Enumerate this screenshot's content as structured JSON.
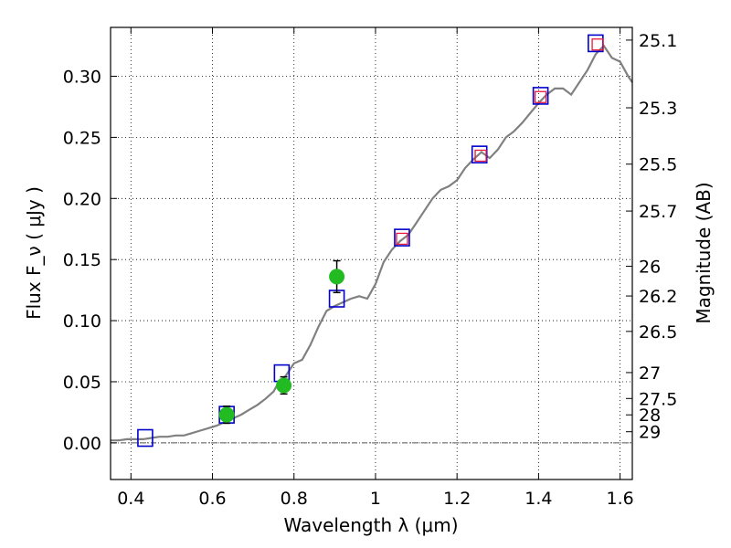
{
  "chart_data": {
    "type": "scatter",
    "xlabel": "Wavelength  λ (μm)",
    "ylabel": "Flux  F_ν  ( μJy )",
    "ylabel_right": "Magnitude (AB)",
    "xlim": [
      0.35,
      1.63
    ],
    "ylim": [
      -0.03,
      0.34
    ],
    "grid": true,
    "x_ticks": [
      {
        "value": 0.4,
        "label": "0.4"
      },
      {
        "value": 0.6,
        "label": "0.6"
      },
      {
        "value": 0.8,
        "label": "0.8"
      },
      {
        "value": 1.0,
        "label": "1"
      },
      {
        "value": 1.2,
        "label": "1.2"
      },
      {
        "value": 1.4,
        "label": "1.4"
      },
      {
        "value": 1.6,
        "label": "1.6"
      }
    ],
    "y_ticks": [
      {
        "value": 0.0,
        "label": "0.00"
      },
      {
        "value": 0.05,
        "label": "0.05"
      },
      {
        "value": 0.1,
        "label": "0.10"
      },
      {
        "value": 0.15,
        "label": "0.15"
      },
      {
        "value": 0.2,
        "label": "0.20"
      },
      {
        "value": 0.25,
        "label": "0.25"
      },
      {
        "value": 0.3,
        "label": "0.30"
      }
    ],
    "right_ticks": [
      {
        "label": "25.1",
        "flux": 0.3296
      },
      {
        "label": "25.3",
        "flux": 0.2742
      },
      {
        "label": "25.5",
        "flux": 0.2281
      },
      {
        "label": "25.7",
        "flux": 0.1897
      },
      {
        "label": "26",
        "flux": 0.1445
      },
      {
        "label": "26.2",
        "flux": 0.1202
      },
      {
        "label": "26.5",
        "flux": 0.0912
      },
      {
        "label": "27",
        "flux": 0.0575
      },
      {
        "label": "27.5",
        "flux": 0.0363
      },
      {
        "label": "28",
        "flux": 0.0229
      },
      {
        "label": "29",
        "flux": 0.0091
      }
    ],
    "series": [
      {
        "style": "line",
        "color": "#808080",
        "points": [
          [
            0.35,
            0.002
          ],
          [
            0.37,
            0.002
          ],
          [
            0.39,
            0.003
          ],
          [
            0.41,
            0.003
          ],
          [
            0.43,
            0.003
          ],
          [
            0.45,
            0.004
          ],
          [
            0.47,
            0.005
          ],
          [
            0.49,
            0.005
          ],
          [
            0.51,
            0.006
          ],
          [
            0.53,
            0.006
          ],
          [
            0.55,
            0.008
          ],
          [
            0.57,
            0.01
          ],
          [
            0.59,
            0.012
          ],
          [
            0.61,
            0.014
          ],
          [
            0.63,
            0.017
          ],
          [
            0.65,
            0.02
          ],
          [
            0.67,
            0.023
          ],
          [
            0.69,
            0.027
          ],
          [
            0.71,
            0.031
          ],
          [
            0.73,
            0.036
          ],
          [
            0.75,
            0.042
          ],
          [
            0.76,
            0.048
          ],
          [
            0.78,
            0.055
          ],
          [
            0.8,
            0.065
          ],
          [
            0.82,
            0.068
          ],
          [
            0.84,
            0.08
          ],
          [
            0.86,
            0.095
          ],
          [
            0.88,
            0.108
          ],
          [
            0.9,
            0.112
          ],
          [
            0.92,
            0.115
          ],
          [
            0.94,
            0.118
          ],
          [
            0.96,
            0.12
          ],
          [
            0.98,
            0.118
          ],
          [
            1.0,
            0.13
          ],
          [
            1.02,
            0.148
          ],
          [
            1.04,
            0.158
          ],
          [
            1.06,
            0.165
          ],
          [
            1.08,
            0.17
          ],
          [
            1.1,
            0.18
          ],
          [
            1.12,
            0.19
          ],
          [
            1.14,
            0.2
          ],
          [
            1.16,
            0.207
          ],
          [
            1.18,
            0.21
          ],
          [
            1.2,
            0.215
          ],
          [
            1.22,
            0.225
          ],
          [
            1.24,
            0.232
          ],
          [
            1.26,
            0.238
          ],
          [
            1.28,
            0.233
          ],
          [
            1.3,
            0.24
          ],
          [
            1.32,
            0.25
          ],
          [
            1.34,
            0.255
          ],
          [
            1.36,
            0.262
          ],
          [
            1.38,
            0.27
          ],
          [
            1.4,
            0.278
          ],
          [
            1.42,
            0.285
          ],
          [
            1.44,
            0.29
          ],
          [
            1.46,
            0.29
          ],
          [
            1.48,
            0.285
          ],
          [
            1.5,
            0.295
          ],
          [
            1.52,
            0.305
          ],
          [
            1.54,
            0.318
          ],
          [
            1.56,
            0.325
          ],
          [
            1.58,
            0.315
          ],
          [
            1.6,
            0.312
          ],
          [
            1.62,
            0.3
          ],
          [
            1.63,
            0.295
          ]
        ]
      },
      {
        "style": "open-square",
        "color": "#0000cc",
        "points": [
          [
            0.435,
            0.004
          ],
          [
            0.635,
            0.023
          ],
          [
            0.77,
            0.057
          ],
          [
            0.905,
            0.118
          ],
          [
            1.065,
            0.168
          ],
          [
            1.255,
            0.236
          ],
          [
            1.405,
            0.284
          ],
          [
            1.54,
            0.327
          ]
        ]
      },
      {
        "style": "open-square-small",
        "color": "#e8183c",
        "points": [
          [
            1.065,
            0.167
          ],
          [
            1.258,
            0.235
          ],
          [
            1.405,
            0.283
          ],
          [
            1.545,
            0.326
          ]
        ]
      },
      {
        "style": "filled-circle",
        "color": "#22bb22",
        "points": [
          {
            "x": 0.635,
            "y": 0.023,
            "err": 0.007
          },
          {
            "x": 0.775,
            "y": 0.047,
            "err": 0.007
          },
          {
            "x": 0.905,
            "y": 0.136,
            "err": 0.013
          }
        ]
      }
    ],
    "zero_line": {
      "y": 0.0,
      "color": "#555555"
    }
  }
}
